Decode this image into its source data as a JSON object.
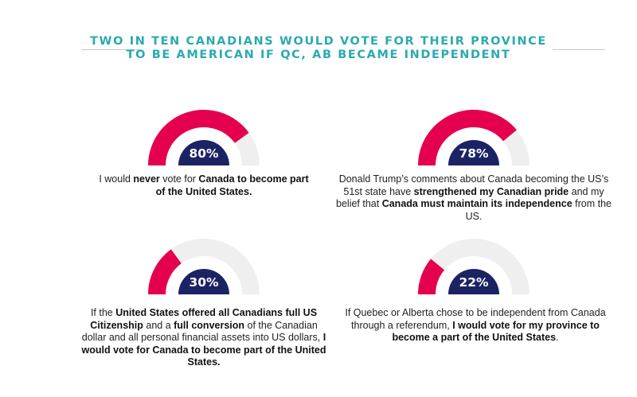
{
  "title": {
    "line1": "TWO IN TEN CANADIANS WOULD VOTE FOR THEIR PROVINCE",
    "line2": "TO BE AMERICAN IF QC, AB BECAME INDEPENDENT"
  },
  "colors": {
    "title": "#2aaab0",
    "fill": "#e5004f",
    "track": "#efefef",
    "center": "#1c2365"
  },
  "chart_data": {
    "type": "gauge",
    "title": "TWO IN TEN CANADIANS WOULD VOTE FOR THEIR PROVINCE TO BE AMERICAN IF QC, AB BECAME INDEPENDENT",
    "range": [
      0,
      100
    ],
    "items": [
      {
        "value": 80,
        "label": "80%",
        "caption": [
          {
            "t": "I would ",
            "b": false
          },
          {
            "t": "never",
            "b": true
          },
          {
            "t": " vote for ",
            "b": false
          },
          {
            "t": "Canada to become part of the United States.",
            "b": true
          }
        ]
      },
      {
        "value": 78,
        "label": "78%",
        "caption": [
          {
            "t": "Donald Trump’s comments about Canada becoming the US’s 51st state have ",
            "b": false
          },
          {
            "t": "strengthened my Canadian pride",
            "b": true
          },
          {
            "t": " and my belief that ",
            "b": false
          },
          {
            "t": "Canada must maintain its independence",
            "b": true
          },
          {
            "t": " from the US.",
            "b": false
          }
        ]
      },
      {
        "value": 30,
        "label": "30%",
        "caption": [
          {
            "t": "If the ",
            "b": false
          },
          {
            "t": "United States offered all Canadians full US Citizenship",
            "b": true
          },
          {
            "t": " and a ",
            "b": false
          },
          {
            "t": "full conversion",
            "b": true
          },
          {
            "t": " of the Canadian dollar and all personal financial assets into US dollars, ",
            "b": false
          },
          {
            "t": "I would vote for Canada to become part of the United States.",
            "b": true
          }
        ]
      },
      {
        "value": 22,
        "label": "22%",
        "caption": [
          {
            "t": "If Quebec or Alberta chose to be independent from Canada through a referendum, ",
            "b": false
          },
          {
            "t": "I would vote for my province to become a part of the United States",
            "b": true
          },
          {
            "t": ".",
            "b": false
          }
        ]
      }
    ]
  }
}
